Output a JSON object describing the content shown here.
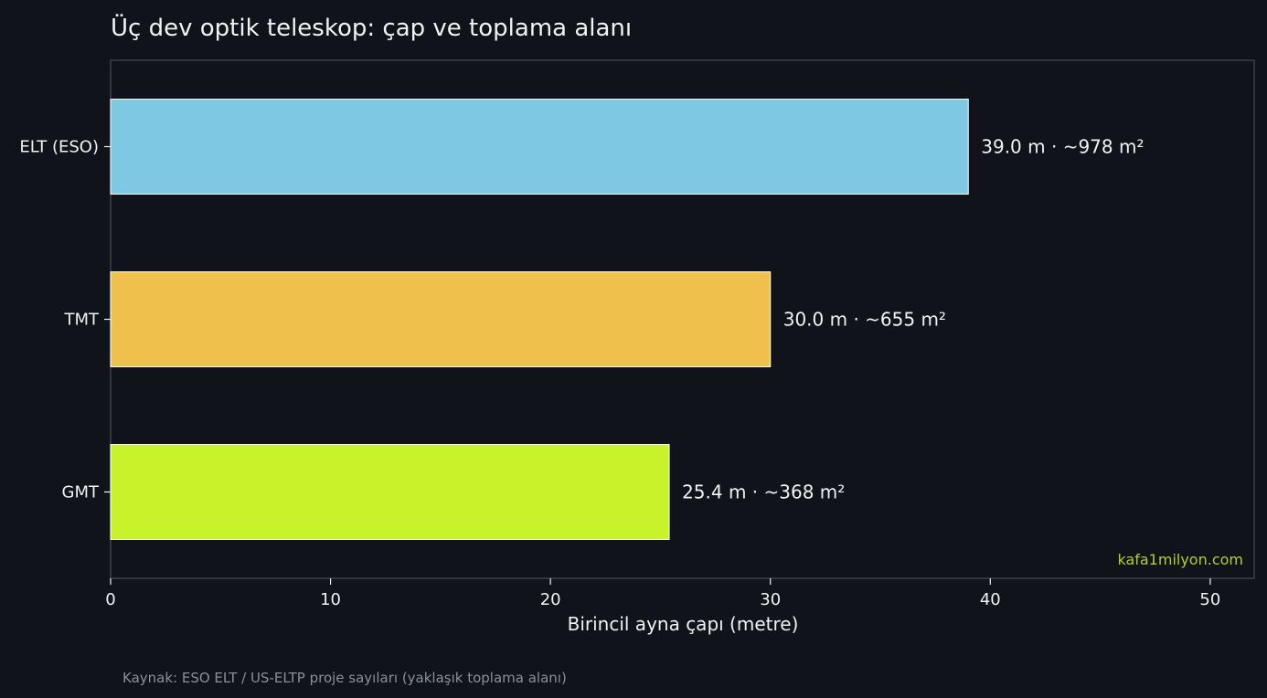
{
  "chart_data": {
    "type": "bar",
    "orientation": "horizontal",
    "title": "Üç dev optik teleskop: çap ve toplama alanı",
    "xlabel": "Birincil ayna çapı (metre)",
    "ylabel": "",
    "xlim": [
      0,
      52
    ],
    "x_ticks": [
      0,
      10,
      20,
      30,
      40,
      50
    ],
    "grid": false,
    "categories": [
      "ELT (ESO)",
      "TMT",
      "GMT"
    ],
    "values": [
      39.0,
      30.0,
      25.4
    ],
    "collecting_area_m2": [
      978,
      655,
      368
    ],
    "data_labels": [
      "39.0 m  ·  ~978 m²",
      "30.0 m  ·  ~655 m²",
      "25.4 m  ·  ~368 m²"
    ],
    "colors": [
      "#7ec8e3",
      "#f0c04c",
      "#c8f22a"
    ],
    "watermark": "kafa1milyon.com",
    "source_note": "Kaynak: ESO ELT / US-ELTP proje sayıları (yaklaşık toplama alanı)"
  },
  "theme": {
    "background": "#10131a",
    "text": "#f2f2f2",
    "frame": "#3a3f4a",
    "bar_edge": "#ffffff",
    "watermark_color": "#b5cc2e",
    "source_color": "#8b8f96"
  }
}
